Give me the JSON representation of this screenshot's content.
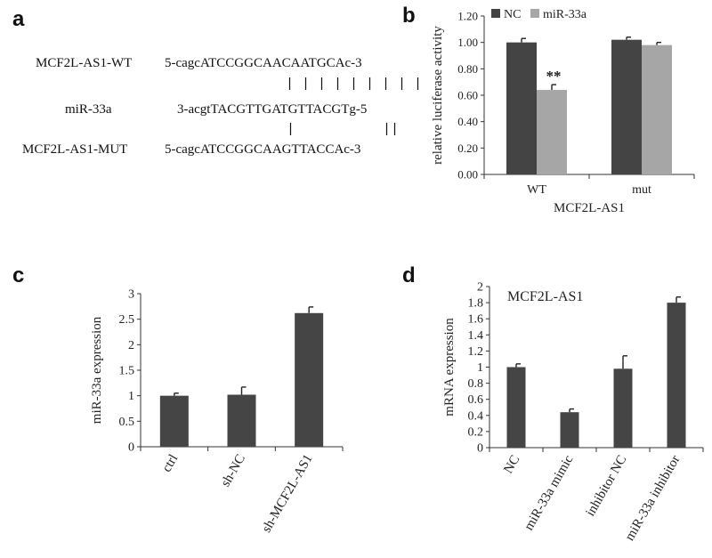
{
  "panels": {
    "a": "a",
    "b": "b",
    "c": "c",
    "d": "d"
  },
  "sequence": {
    "wt_label": "MCF2L-AS1-WT",
    "wt_seq": "5-cagcATCCGGCAACAATGCAc-3",
    "mir_label": "miR-33a",
    "mir_seq": "3-acgtTACGTTGATGTTACGTg-5",
    "mut_label": "MCF2L-AS1-MUT",
    "mut_seq": "5-cagcATCCGGCAAGTTACCAc-3",
    "bars_top": "| | | | | | | | |",
    "bars_bottom": "|           ||"
  },
  "chart_data": [
    {
      "id": "b",
      "type": "bar",
      "title": "",
      "xlabel": "MCF2L-AS1",
      "ylabel": "relative luciferase activity",
      "ylim": [
        0,
        1.2
      ],
      "yticks": [
        "0.00",
        "0.20",
        "0.40",
        "0.60",
        "0.80",
        "1.00",
        "1.20"
      ],
      "categories": [
        "WT",
        "mut"
      ],
      "series": [
        {
          "name": "NC",
          "color": "#444444",
          "values": [
            1.0,
            1.02
          ],
          "errors": [
            0.03,
            0.02
          ]
        },
        {
          "name": "miR-33a",
          "color": "#a6a6a6",
          "values": [
            0.64,
            0.98
          ],
          "errors": [
            0.04,
            0.02
          ]
        }
      ],
      "annotations": [
        {
          "text": "**",
          "category": 0,
          "series": 1
        }
      ],
      "legend": "top"
    },
    {
      "id": "c",
      "type": "bar",
      "title": "",
      "xlabel": "",
      "ylabel": "miR-33a expression",
      "ylim": [
        0,
        3
      ],
      "yticks": [
        "0",
        "0.5",
        "1",
        "1.5",
        "2",
        "2.5",
        "3"
      ],
      "categories": [
        "ctrl",
        "sh-NC",
        "sh-MCF2L-AS1"
      ],
      "series": [
        {
          "color": "#454545",
          "values": [
            1.0,
            1.02,
            2.62
          ],
          "errors": [
            0.05,
            0.15,
            0.12
          ]
        }
      ]
    },
    {
      "id": "d",
      "type": "bar",
      "title": "MCF2L-AS1",
      "xlabel": "",
      "ylabel": "mRNA expression",
      "ylim": [
        0,
        2
      ],
      "yticks": [
        "0",
        "0.2",
        "0.4",
        "0.6",
        "0.8",
        "1",
        "1.2",
        "1.4",
        "1.6",
        "1.8",
        "2"
      ],
      "categories": [
        "NC",
        "miR-33a mimic",
        "inhibitor NC",
        "miR-33a inhibitor"
      ],
      "series": [
        {
          "color": "#454545",
          "values": [
            1.0,
            0.44,
            0.98,
            1.8
          ],
          "errors": [
            0.04,
            0.04,
            0.16,
            0.07
          ]
        }
      ]
    }
  ]
}
